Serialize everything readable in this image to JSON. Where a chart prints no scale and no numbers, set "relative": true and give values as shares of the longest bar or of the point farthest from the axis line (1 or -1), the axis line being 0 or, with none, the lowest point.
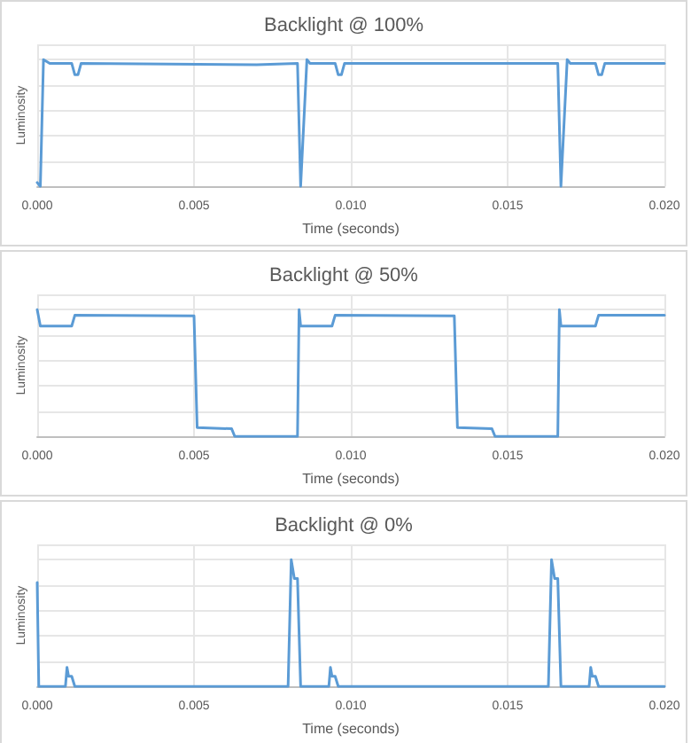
{
  "chart_data": [
    {
      "type": "line",
      "title": "Backlight @ 100%",
      "xlabel": "Time (seconds)",
      "ylabel": "Luminosity",
      "relative": true,
      "tick_labels": "x",
      "grid": true,
      "marker": "none",
      "line_style": "solid",
      "xlim": [
        0,
        0.02
      ],
      "xticks": [
        {
          "value": 0,
          "label": "0.000"
        },
        {
          "value": 0.005,
          "label": "0.005"
        },
        {
          "value": 0.01,
          "label": "0.010"
        },
        {
          "value": 0.015,
          "label": "0.015"
        },
        {
          "value": 0.02,
          "label": "0.020"
        }
      ],
      "series": [
        {
          "color": "#5b9bd5",
          "x": [
            0,
            0.0001,
            0.0002,
            0.0004,
            0.0011,
            0.0012,
            0.0013,
            0.0014,
            0.007,
            0.0083,
            0.0084,
            0.0086,
            0.0087,
            0.0095,
            0.0096,
            0.0097,
            0.0098,
            0.0166,
            0.0167,
            0.0169,
            0.017,
            0.0178,
            0.0179,
            0.018,
            0.0181,
            0.02
          ],
          "values": [
            0.03,
            0,
            1,
            0.97,
            0.97,
            0.88,
            0.88,
            0.97,
            0.96,
            0.97,
            0,
            1,
            0.97,
            0.97,
            0.88,
            0.88,
            0.97,
            0.97,
            0,
            1,
            0.97,
            0.97,
            0.88,
            0.88,
            0.97,
            0.97
          ]
        }
      ]
    },
    {
      "type": "line",
      "title": "Backlight @ 50%",
      "xlabel": "Time (seconds)",
      "ylabel": "Luminosity",
      "relative": true,
      "tick_labels": "x",
      "grid": true,
      "marker": "none",
      "line_style": "solid",
      "xlim": [
        0,
        0.02
      ],
      "xticks": [
        {
          "value": 0,
          "label": "0.000"
        },
        {
          "value": 0.005,
          "label": "0.005"
        },
        {
          "value": 0.01,
          "label": "0.010"
        },
        {
          "value": 0.015,
          "label": "0.015"
        },
        {
          "value": 0.02,
          "label": "0.020"
        }
      ],
      "series": [
        {
          "color": "#5b9bd5",
          "x": [
            0,
            0.0001,
            0.0011,
            0.0012,
            0.005,
            0.0051,
            0.0062,
            0.0063,
            0.0083,
            0.00835,
            0.0084,
            0.0094,
            0.0095,
            0.0133,
            0.0134,
            0.0145,
            0.0146,
            0.0166,
            0.01665,
            0.0167,
            0.0178,
            0.0179,
            0.02
          ],
          "values": [
            1,
            0.87,
            0.87,
            0.955,
            0.95,
            0.07,
            0.06,
            0,
            0,
            1,
            0.87,
            0.87,
            0.955,
            0.95,
            0.07,
            0.06,
            0,
            0,
            1,
            0.87,
            0.87,
            0.955,
            0.955
          ]
        }
      ]
    },
    {
      "type": "line",
      "title": "Backlight @ 0%",
      "xlabel": "Time (seconds)",
      "ylabel": "Luminosity",
      "relative": true,
      "tick_labels": "x",
      "grid": true,
      "marker": "none",
      "line_style": "solid",
      "xlim": [
        0,
        0.02
      ],
      "xticks": [
        {
          "value": 0,
          "label": "0.000"
        },
        {
          "value": 0.005,
          "label": "0.005"
        },
        {
          "value": 0.01,
          "label": "0.010"
        },
        {
          "value": 0.015,
          "label": "0.015"
        },
        {
          "value": 0.02,
          "label": "0.020"
        }
      ],
      "series": [
        {
          "color": "#5b9bd5",
          "x": [
            0,
            5e-05,
            0.0009,
            0.00095,
            0.001,
            0.0011,
            0.0012,
            0.008,
            0.0081,
            0.0082,
            0.0083,
            0.0084,
            0.0093,
            0.00935,
            0.0094,
            0.0095,
            0.0096,
            0.0163,
            0.0164,
            0.0165,
            0.0166,
            0.0167,
            0.0176,
            0.01765,
            0.0177,
            0.0178,
            0.0179,
            0.02
          ],
          "values": [
            0.82,
            0,
            0,
            0.15,
            0.08,
            0.08,
            0,
            0,
            1,
            0.85,
            0.85,
            0,
            0,
            0.15,
            0.08,
            0.08,
            0,
            0,
            1,
            0.85,
            0.85,
            0,
            0,
            0.15,
            0.08,
            0.08,
            0,
            0
          ]
        }
      ]
    }
  ]
}
